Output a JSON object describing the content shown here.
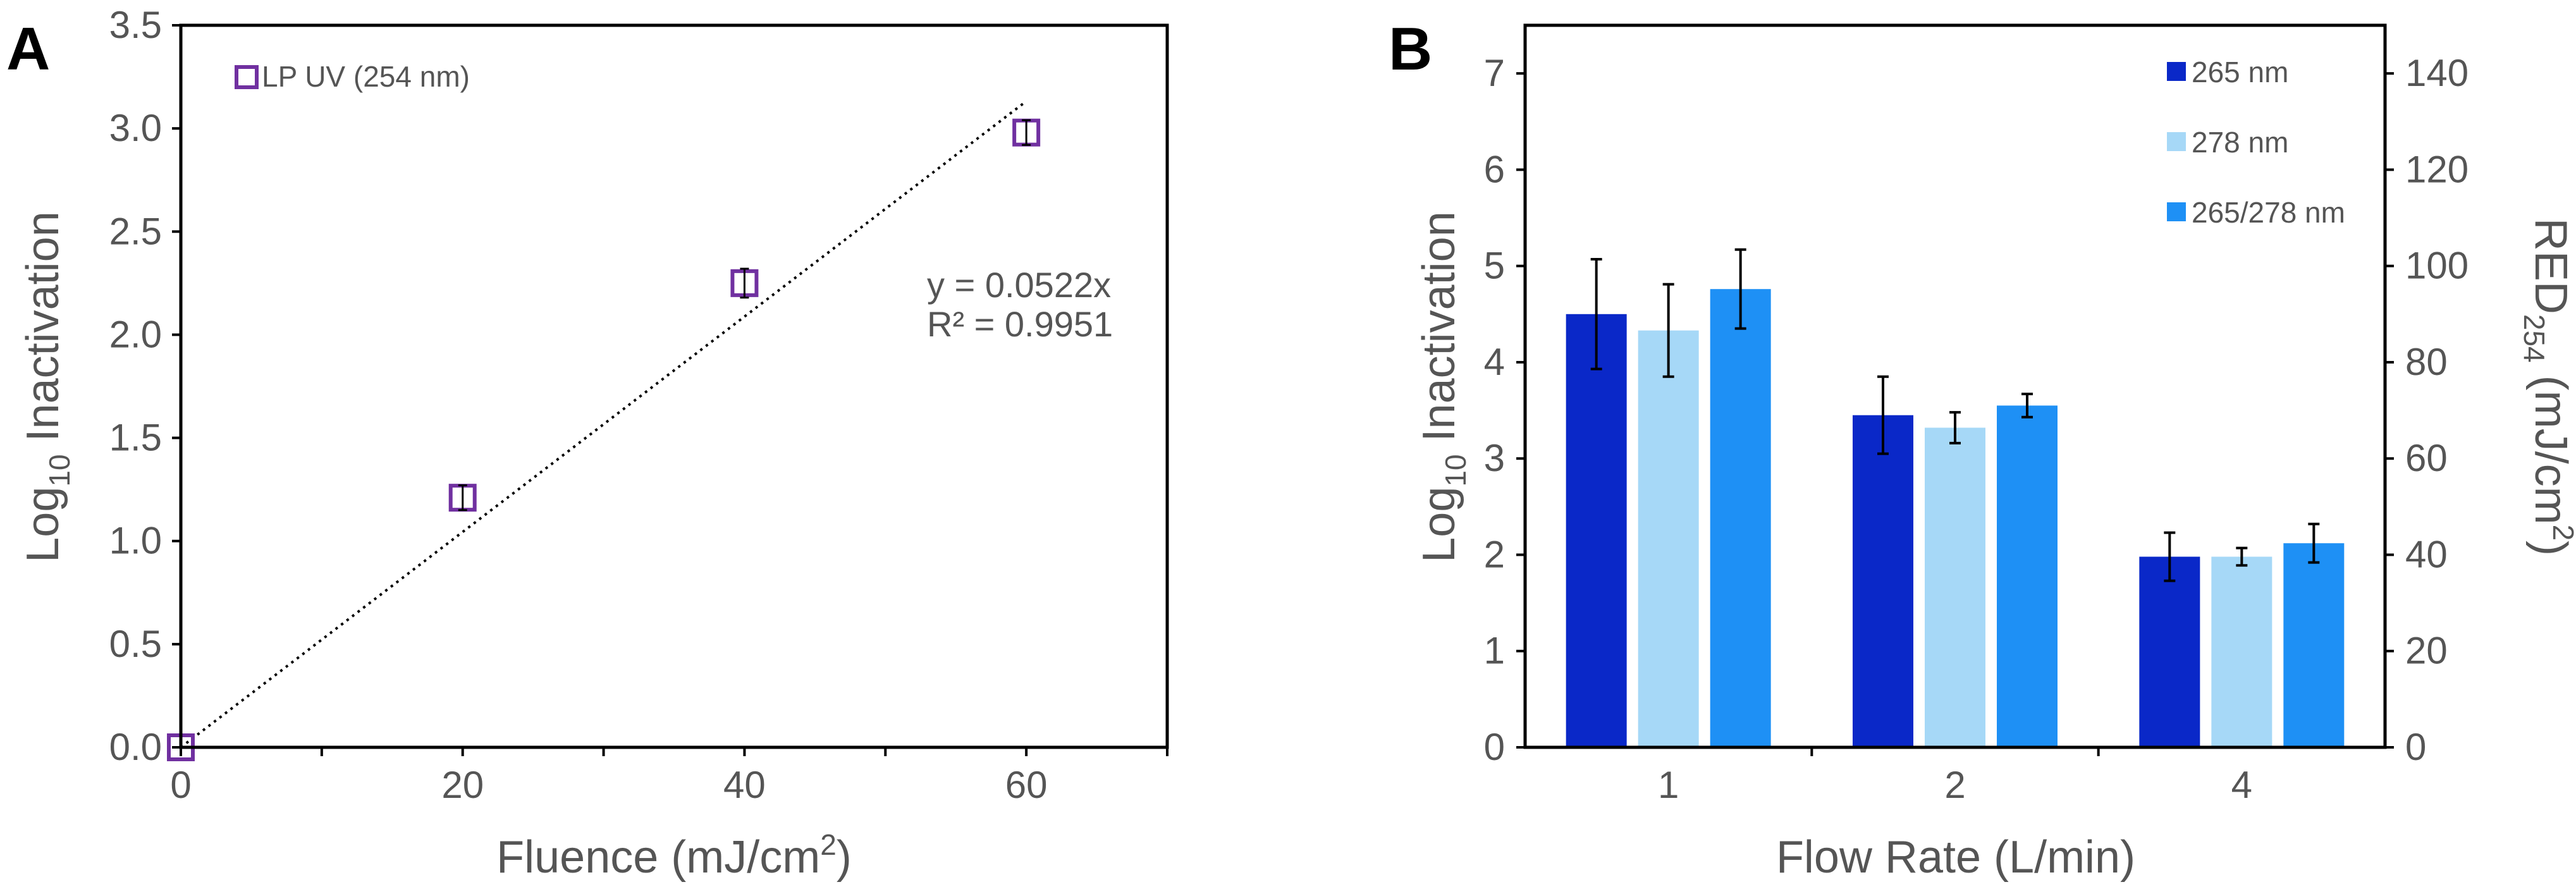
{
  "chart_data": [
    {
      "panel": "A",
      "type": "scatter",
      "xlabel": "Fluence (mJ/cm2)",
      "xlabel_parts": {
        "main": "Fluence (mJ/cm",
        "sup": "2",
        "close": ")"
      },
      "ylabel": "Log10 Inactivation",
      "ylabel_parts": {
        "main": "Log",
        "sub": "10",
        "rest": " Inactivation"
      },
      "xlim": [
        0,
        70
      ],
      "ylim": [
        0,
        3.5
      ],
      "xticks": [
        0,
        10,
        20,
        30,
        40,
        50,
        60,
        70
      ],
      "xtick_labels": [
        "0",
        "",
        "20",
        "",
        "40",
        "",
        "60",
        ""
      ],
      "yticks": [
        0,
        0.5,
        1.0,
        1.5,
        2.0,
        2.5,
        3.0,
        3.5
      ],
      "ytick_labels": [
        "0.0",
        "0.5",
        "1.0",
        "1.5",
        "2.0",
        "2.5",
        "3.0",
        "3.5"
      ],
      "legend": [
        "LP UV (254 nm)"
      ],
      "legend_position": "top-left",
      "series": [
        {
          "name": "LP UV (254 nm)",
          "x": [
            0,
            20,
            40,
            60
          ],
          "y": [
            0.0,
            1.21,
            2.25,
            2.98
          ],
          "yerr": [
            0.0,
            0.06,
            0.07,
            0.06
          ]
        }
      ],
      "trendline": {
        "slope": 0.0522,
        "x_range": [
          0,
          60
        ]
      },
      "annotations": [
        "y = 0.0522x",
        "R² = 0.9951"
      ]
    },
    {
      "panel": "B",
      "type": "bar",
      "categories": [
        "1",
        "2",
        "4"
      ],
      "xlabel": "Flow Rate (L/min)",
      "ylabel": "Log10 Inactivation",
      "ylabel_parts": {
        "main": "Log",
        "sub": "10",
        "rest": " Inactivation"
      },
      "y2label": "RED254 (mJ/cm2)",
      "y2label_parts": {
        "main": "RED",
        "sub": "254",
        "rest": " (mJ/cm",
        "sup": "2",
        "close": ")"
      },
      "ylim": [
        0,
        7.5
      ],
      "yticks": [
        0,
        1,
        2,
        3,
        4,
        5,
        6,
        7
      ],
      "y2lim": [
        0,
        150
      ],
      "y2ticks": [
        0,
        20,
        40,
        60,
        80,
        100,
        120,
        140
      ],
      "legend_position": "top-right",
      "series": [
        {
          "name": "265 nm",
          "values": [
            4.5,
            3.45,
            1.98
          ],
          "err": [
            0.57,
            0.4,
            0.25
          ],
          "color": "#0a28c8"
        },
        {
          "name": "278 nm",
          "values": [
            4.33,
            3.32,
            1.98
          ],
          "err": [
            0.48,
            0.16,
            0.09
          ],
          "color": "#a6d8f7"
        },
        {
          "name": "265/278 nm",
          "values": [
            4.76,
            3.55,
            2.12
          ],
          "err": [
            0.41,
            0.12,
            0.2
          ],
          "color": "#1e90f5"
        }
      ]
    }
  ],
  "colors": {
    "axis": "#000000",
    "text": "#555555",
    "marker": "#7030a0",
    "trend": "#000000"
  }
}
